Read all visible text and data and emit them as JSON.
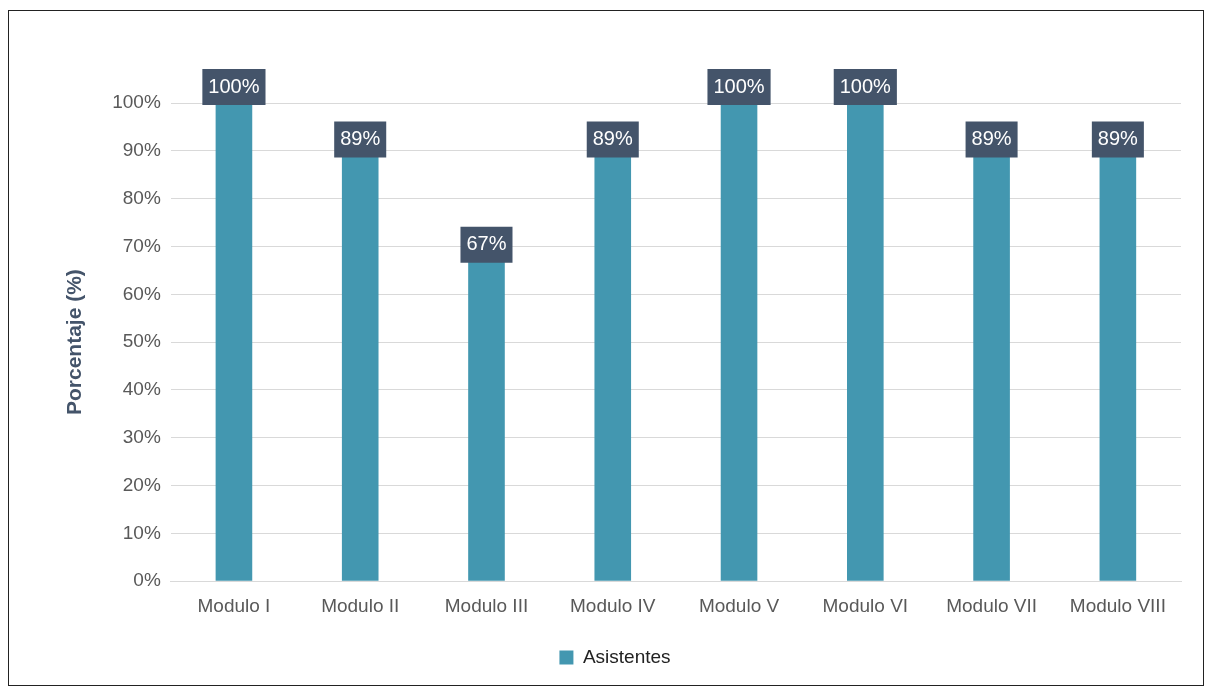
{
  "chart_data": {
    "type": "bar",
    "ylabel": "Porcentaje (%)",
    "categories": [
      "Modulo I",
      "Modulo II",
      "Modulo III",
      "Modulo IV",
      "Modulo V",
      "Modulo VI",
      "Modulo VII",
      "Modulo VIII"
    ],
    "series": [
      {
        "name": "Asistentes",
        "color": "#4397b0",
        "values": [
          100,
          89,
          67,
          89,
          100,
          100,
          89,
          89
        ],
        "value_labels": [
          "100%",
          "89%",
          "67%",
          "89%",
          "100%",
          "100%",
          "89%",
          "89%"
        ]
      }
    ],
    "ylim": [
      0,
      100
    ],
    "yticks": [
      {
        "value": 0,
        "label": "0%"
      },
      {
        "value": 10,
        "label": "10%"
      },
      {
        "value": 20,
        "label": "20%"
      },
      {
        "value": 30,
        "label": "30%"
      },
      {
        "value": 40,
        "label": "40%"
      },
      {
        "value": 50,
        "label": "50%"
      },
      {
        "value": 60,
        "label": "60%"
      },
      {
        "value": 70,
        "label": "70%"
      },
      {
        "value": 80,
        "label": "80%"
      },
      {
        "value": 90,
        "label": "90%"
      },
      {
        "value": 100,
        "label": "100%"
      }
    ],
    "grid": "y",
    "legend": "bottom"
  }
}
